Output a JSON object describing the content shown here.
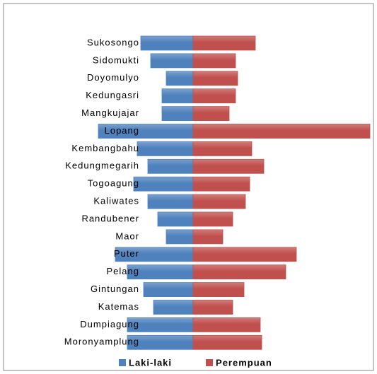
{
  "chart_data": {
    "type": "bar",
    "orientation": "horizontal-pyramid",
    "categories": [
      "Sukosongo",
      "Sidomukti",
      "Doyomulyo",
      "Kedungasri",
      "Mangkujajar",
      "Lopang",
      "Kembangbahu",
      "Kedungmegarih",
      "Togoagung",
      "Kaliwates",
      "Randubener",
      "Maor",
      "Puter",
      "Pelang",
      "Gintungan",
      "Katemas",
      "Dumpiagung",
      "Moronyamplung"
    ],
    "series": [
      {
        "name": "Laki-laki",
        "color": "#4f81bd",
        "values": [
          74,
          60,
          38,
          44,
          44,
          134,
          79,
          64,
          84,
          64,
          50,
          38,
          110,
          93,
          70,
          56,
          93,
          93
        ]
      },
      {
        "name": "Perempuan",
        "color": "#c0504d",
        "values": [
          88,
          60,
          63,
          60,
          51,
          250,
          83,
          100,
          80,
          74,
          56,
          42,
          146,
          131,
          72,
          56,
          95,
          97
        ]
      }
    ],
    "legend": "bottom"
  }
}
